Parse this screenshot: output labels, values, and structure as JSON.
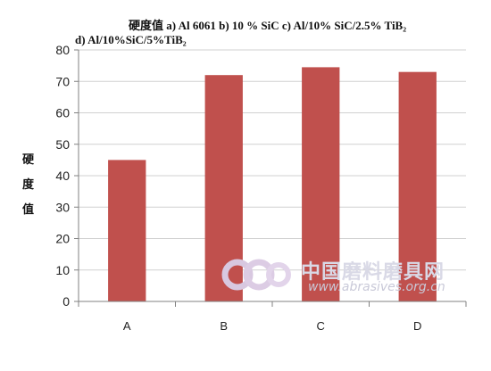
{
  "chart_data": {
    "type": "bar",
    "title_line1": "硬度值  a) Al 6061 b) 10 % SiC c) Al/10% SiC/2.5%  TiB₂",
    "title_line2": "d) Al/10%SiC/5%TiB₂",
    "xlabel": "",
    "ylabel": "硬度值",
    "ylabel_chars": [
      "硬",
      "度",
      "值"
    ],
    "categories": [
      "A",
      "B",
      "C",
      "D"
    ],
    "series": [
      {
        "values": [
          45,
          72,
          74.5,
          73
        ]
      }
    ],
    "ylim": [
      0,
      80
    ],
    "yticks": [
      "0",
      "10",
      "20",
      "30",
      "40",
      "50",
      "60",
      "70",
      "80"
    ],
    "grid": true,
    "legend": "none",
    "bar_color": "#c0504d",
    "grid_color": "#d0d0d0"
  },
  "watermark": {
    "cn_text": "中国磨料磨具网",
    "url_text": "www.abrasives.org.cn",
    "logo_color": "#d8c8e0"
  }
}
